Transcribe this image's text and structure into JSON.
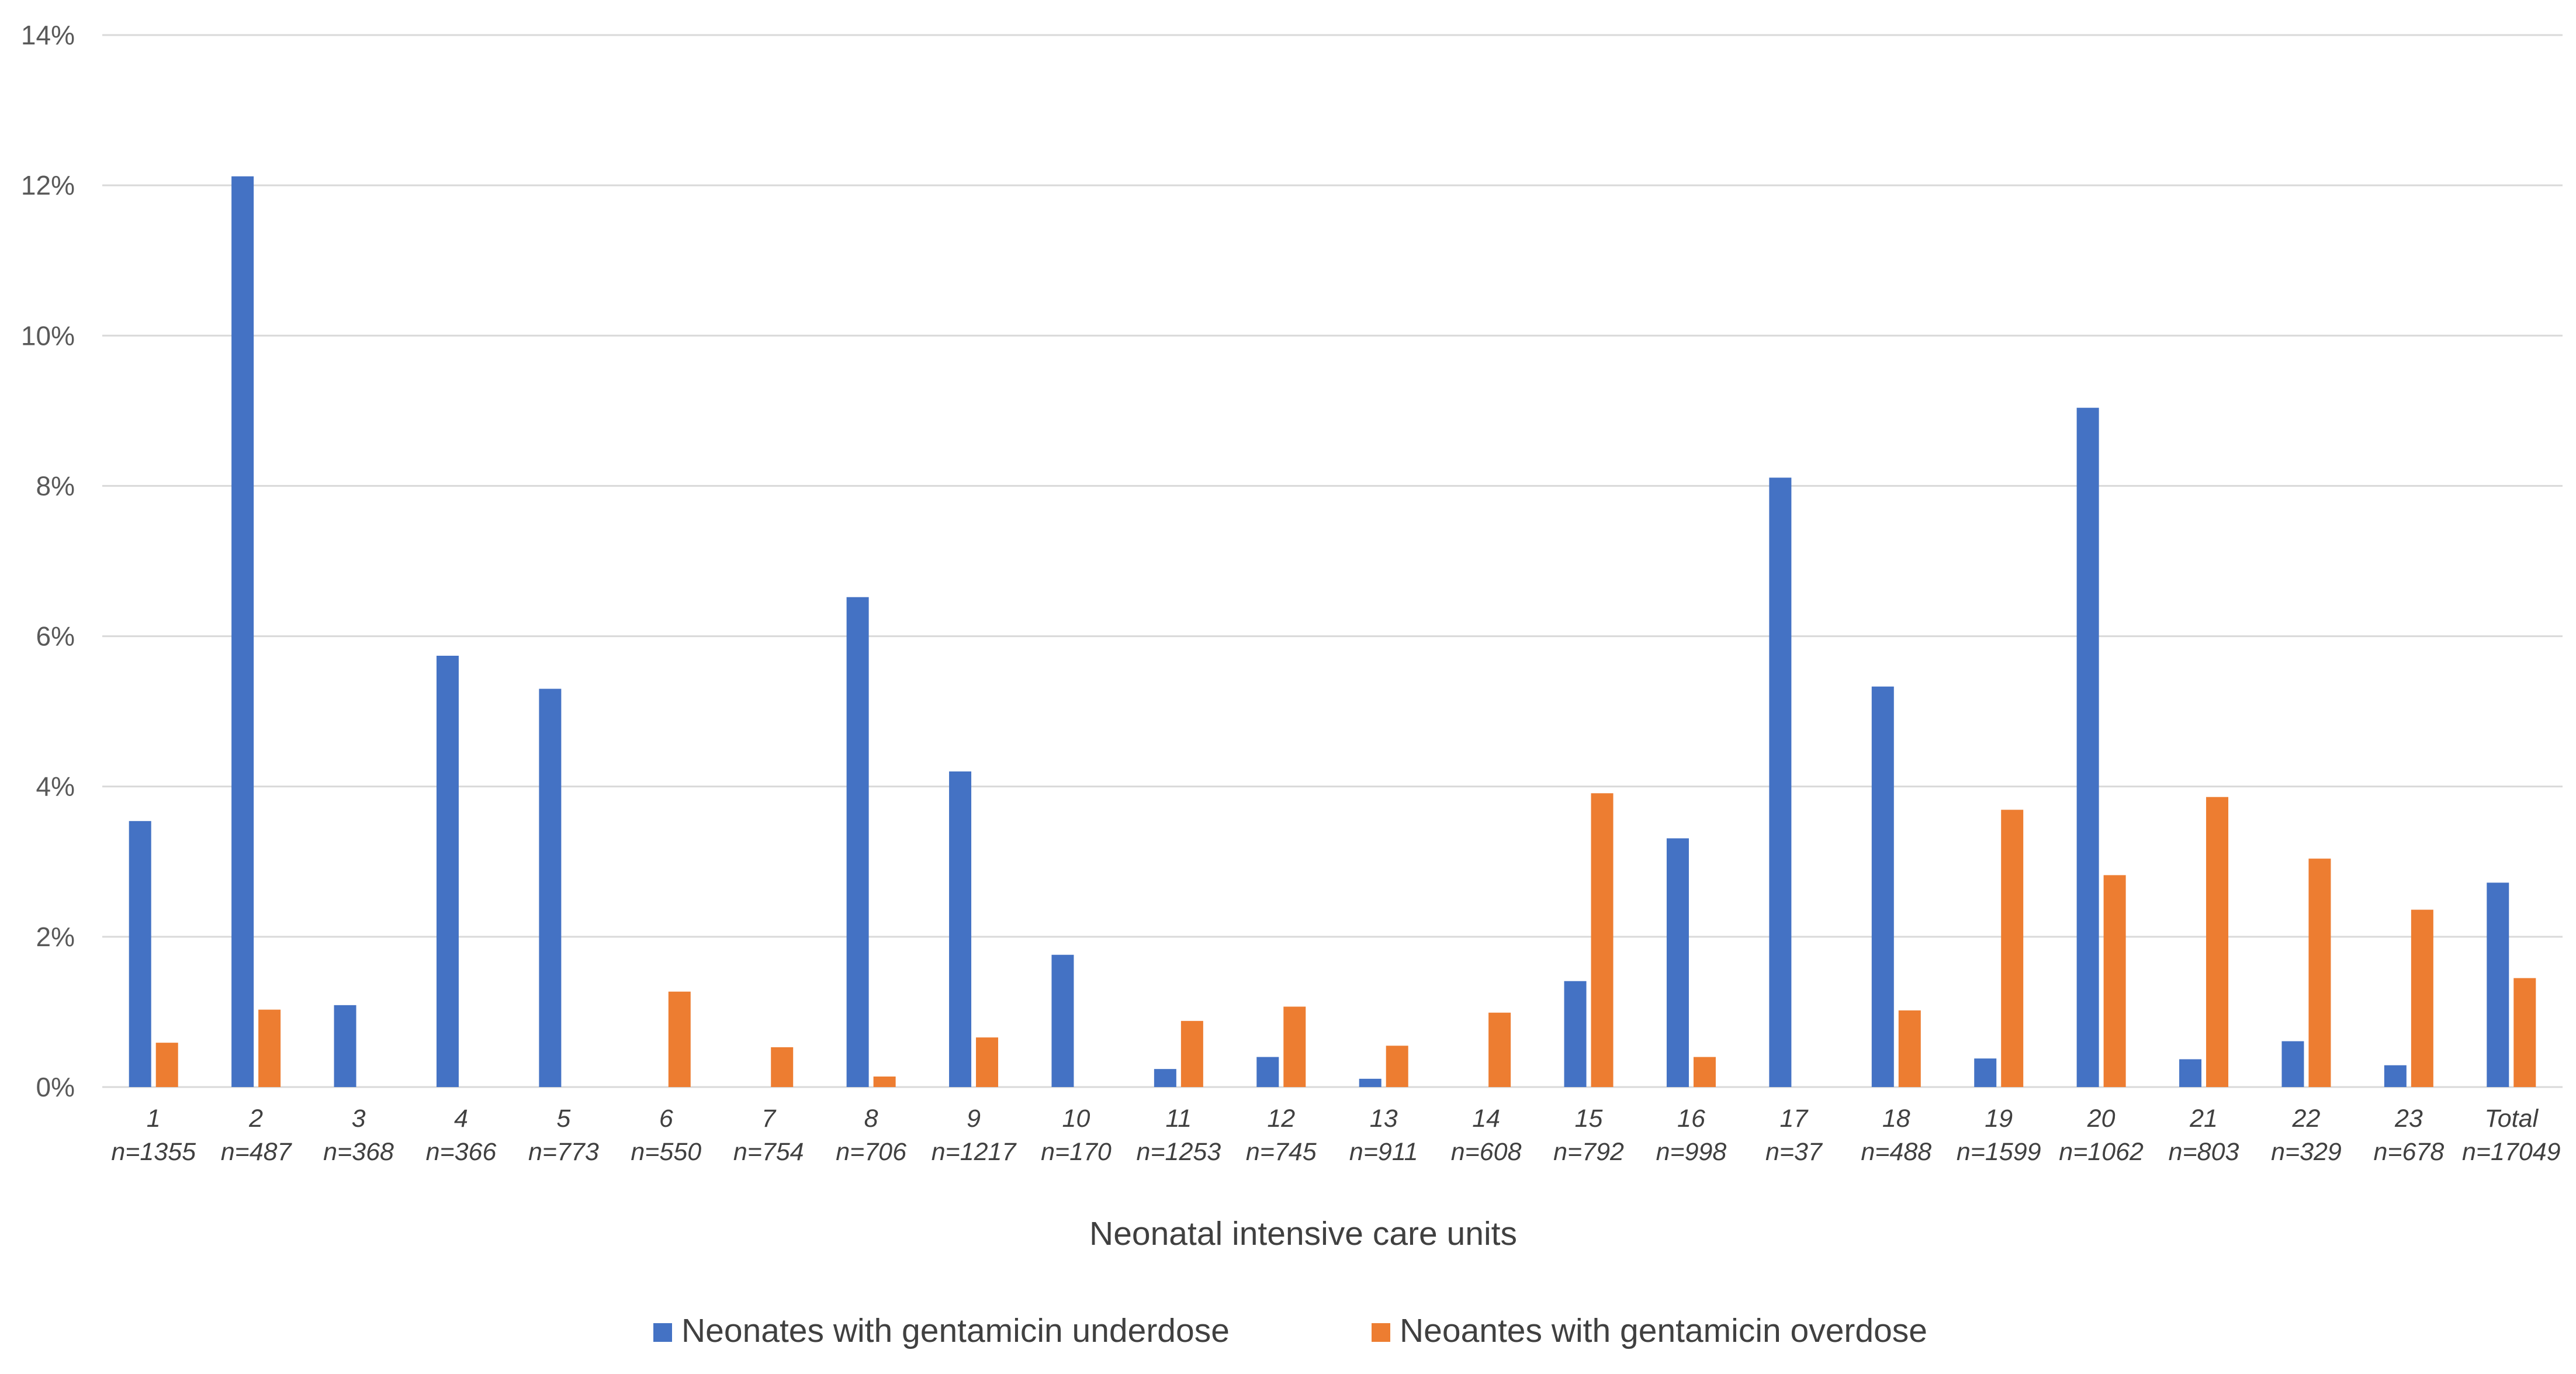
{
  "chart_data": {
    "type": "bar",
    "title": "",
    "xlabel": "Neonatal intensive care units",
    "ylabel": "",
    "ylim": [
      0,
      14
    ],
    "yticks": [
      "0%",
      "2%",
      "4%",
      "6%",
      "8%",
      "10%",
      "12%",
      "14%"
    ],
    "grid": true,
    "legend_position": "bottom",
    "categories": [
      {
        "label": "1",
        "n": "n=1355"
      },
      {
        "label": "2",
        "n": "n=487"
      },
      {
        "label": "3",
        "n": "n=368"
      },
      {
        "label": "4",
        "n": "n=366"
      },
      {
        "label": "5",
        "n": "n=773"
      },
      {
        "label": "6",
        "n": "n=550"
      },
      {
        "label": "7",
        "n": "n=754"
      },
      {
        "label": "8",
        "n": "n=706"
      },
      {
        "label": "9",
        "n": "n=1217"
      },
      {
        "label": "10",
        "n": "n=170"
      },
      {
        "label": "11",
        "n": "n=1253"
      },
      {
        "label": "12",
        "n": "n=745"
      },
      {
        "label": "13",
        "n": "n=911"
      },
      {
        "label": "14",
        "n": "n=608"
      },
      {
        "label": "15",
        "n": "n=792"
      },
      {
        "label": "16",
        "n": "n=998"
      },
      {
        "label": "17",
        "n": "n=37"
      },
      {
        "label": "18",
        "n": "n=488"
      },
      {
        "label": "19",
        "n": "n=1599"
      },
      {
        "label": "20",
        "n": "n=1062"
      },
      {
        "label": "21",
        "n": "n=803"
      },
      {
        "label": "22",
        "n": "n=329"
      },
      {
        "label": "23",
        "n": "n=678"
      },
      {
        "label": "Total",
        "n": "n=17049"
      }
    ],
    "series": [
      {
        "name": "Neonates with gentamicin underdose",
        "color": "#4472c4",
        "values": [
          3.54,
          12.12,
          1.09,
          5.74,
          5.3,
          0,
          0,
          6.52,
          4.2,
          1.76,
          0.24,
          0.4,
          0.11,
          0,
          1.41,
          3.31,
          8.11,
          5.33,
          0.38,
          9.04,
          0.37,
          0.61,
          0.29,
          2.72
        ]
      },
      {
        "name": "Neoantes with gentamicin overdose",
        "color": "#ed7d31",
        "values": [
          0.59,
          1.03,
          0,
          0,
          0,
          1.27,
          0.53,
          0.14,
          0.66,
          0,
          0.88,
          1.07,
          0.55,
          0.99,
          3.91,
          0.4,
          0,
          1.02,
          3.69,
          2.82,
          3.86,
          3.04,
          2.36,
          1.45
        ]
      }
    ]
  }
}
